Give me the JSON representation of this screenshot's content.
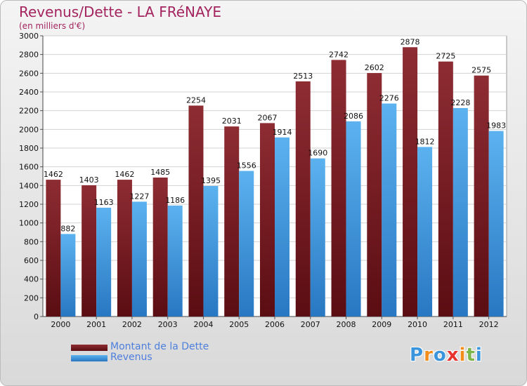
{
  "chart_data": {
    "type": "bar",
    "title": "Revenus/Dette - LA FRéNAYE",
    "subtitle": "(en milliers d'€)",
    "categories": [
      "2000",
      "2001",
      "2002",
      "2003",
      "2004",
      "2005",
      "2006",
      "2007",
      "2008",
      "2009",
      "2010",
      "2011",
      "2012"
    ],
    "series": [
      {
        "name": "Montant de la Dette",
        "color": "#7b1f26",
        "values": [
          1462,
          1403,
          1462,
          1485,
          2254,
          2031,
          2067,
          2513,
          2742,
          2602,
          2878,
          2725,
          2575
        ]
      },
      {
        "name": "Revenus",
        "color": "#3a95dd",
        "values": [
          882,
          1163,
          1227,
          1186,
          1395,
          1556,
          1914,
          1690,
          2086,
          2276,
          1812,
          2228,
          1983
        ]
      }
    ],
    "ylim": [
      0,
      3000
    ],
    "ytick_step": 200,
    "grid": true,
    "legend_position": "bottom-left"
  },
  "logo": {
    "letters": [
      "P",
      "r",
      "o",
      "x",
      "i",
      "t",
      "i"
    ],
    "colors": [
      "#3a95dd",
      "#f28c1b",
      "#3a95dd",
      "#e8342f",
      "#f28c1b",
      "#7ab648",
      "#3a95dd"
    ]
  }
}
